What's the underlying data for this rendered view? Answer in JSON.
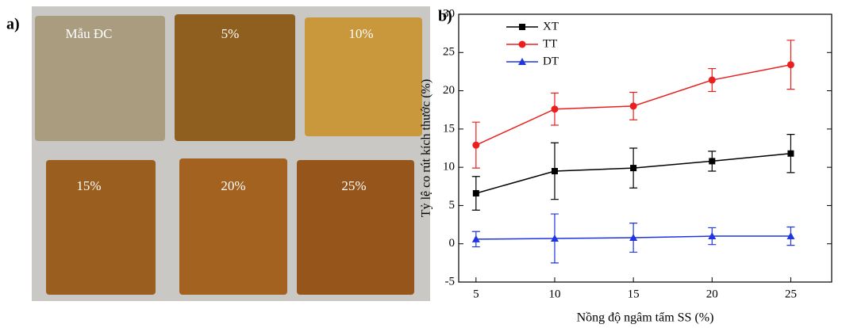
{
  "photo": {
    "label": "a)",
    "samples": [
      "Mẫu ĐC",
      "5%",
      "10%",
      "15%",
      "20%",
      "25%"
    ]
  },
  "chart_data": {
    "type": "line",
    "panel_label": "b)",
    "x_label": "Nồng độ ngâm tẩm SS (%)",
    "y_label": "Tỷ lệ co rút kích thước (%)",
    "x": [
      5,
      10,
      15,
      20,
      25
    ],
    "series": [
      {
        "name": "XT",
        "color": "#000000",
        "marker": "square",
        "values": [
          6.6,
          9.5,
          9.9,
          10.8,
          11.8
        ],
        "errors": [
          2.2,
          3.7,
          2.6,
          1.3,
          2.5
        ]
      },
      {
        "name": "TT",
        "color": "#e8201e",
        "marker": "circle",
        "values": [
          12.9,
          17.6,
          18.0,
          21.4,
          23.4
        ],
        "errors": [
          3.0,
          2.1,
          1.8,
          1.5,
          3.2
        ]
      },
      {
        "name": "DT",
        "color": "#1f35e0",
        "marker": "triangle",
        "values": [
          0.6,
          0.7,
          0.8,
          1.0,
          1.0
        ],
        "errors": [
          1.0,
          3.2,
          1.9,
          1.1,
          1.2
        ]
      }
    ],
    "xlim": [
      3.9,
      27.6
    ],
    "xticks": [
      5,
      10,
      15,
      20,
      25
    ],
    "ylim": [
      -5,
      30
    ],
    "yticks": [
      -5,
      0,
      5,
      10,
      15,
      20,
      25,
      30
    ],
    "legend": "upper left"
  }
}
